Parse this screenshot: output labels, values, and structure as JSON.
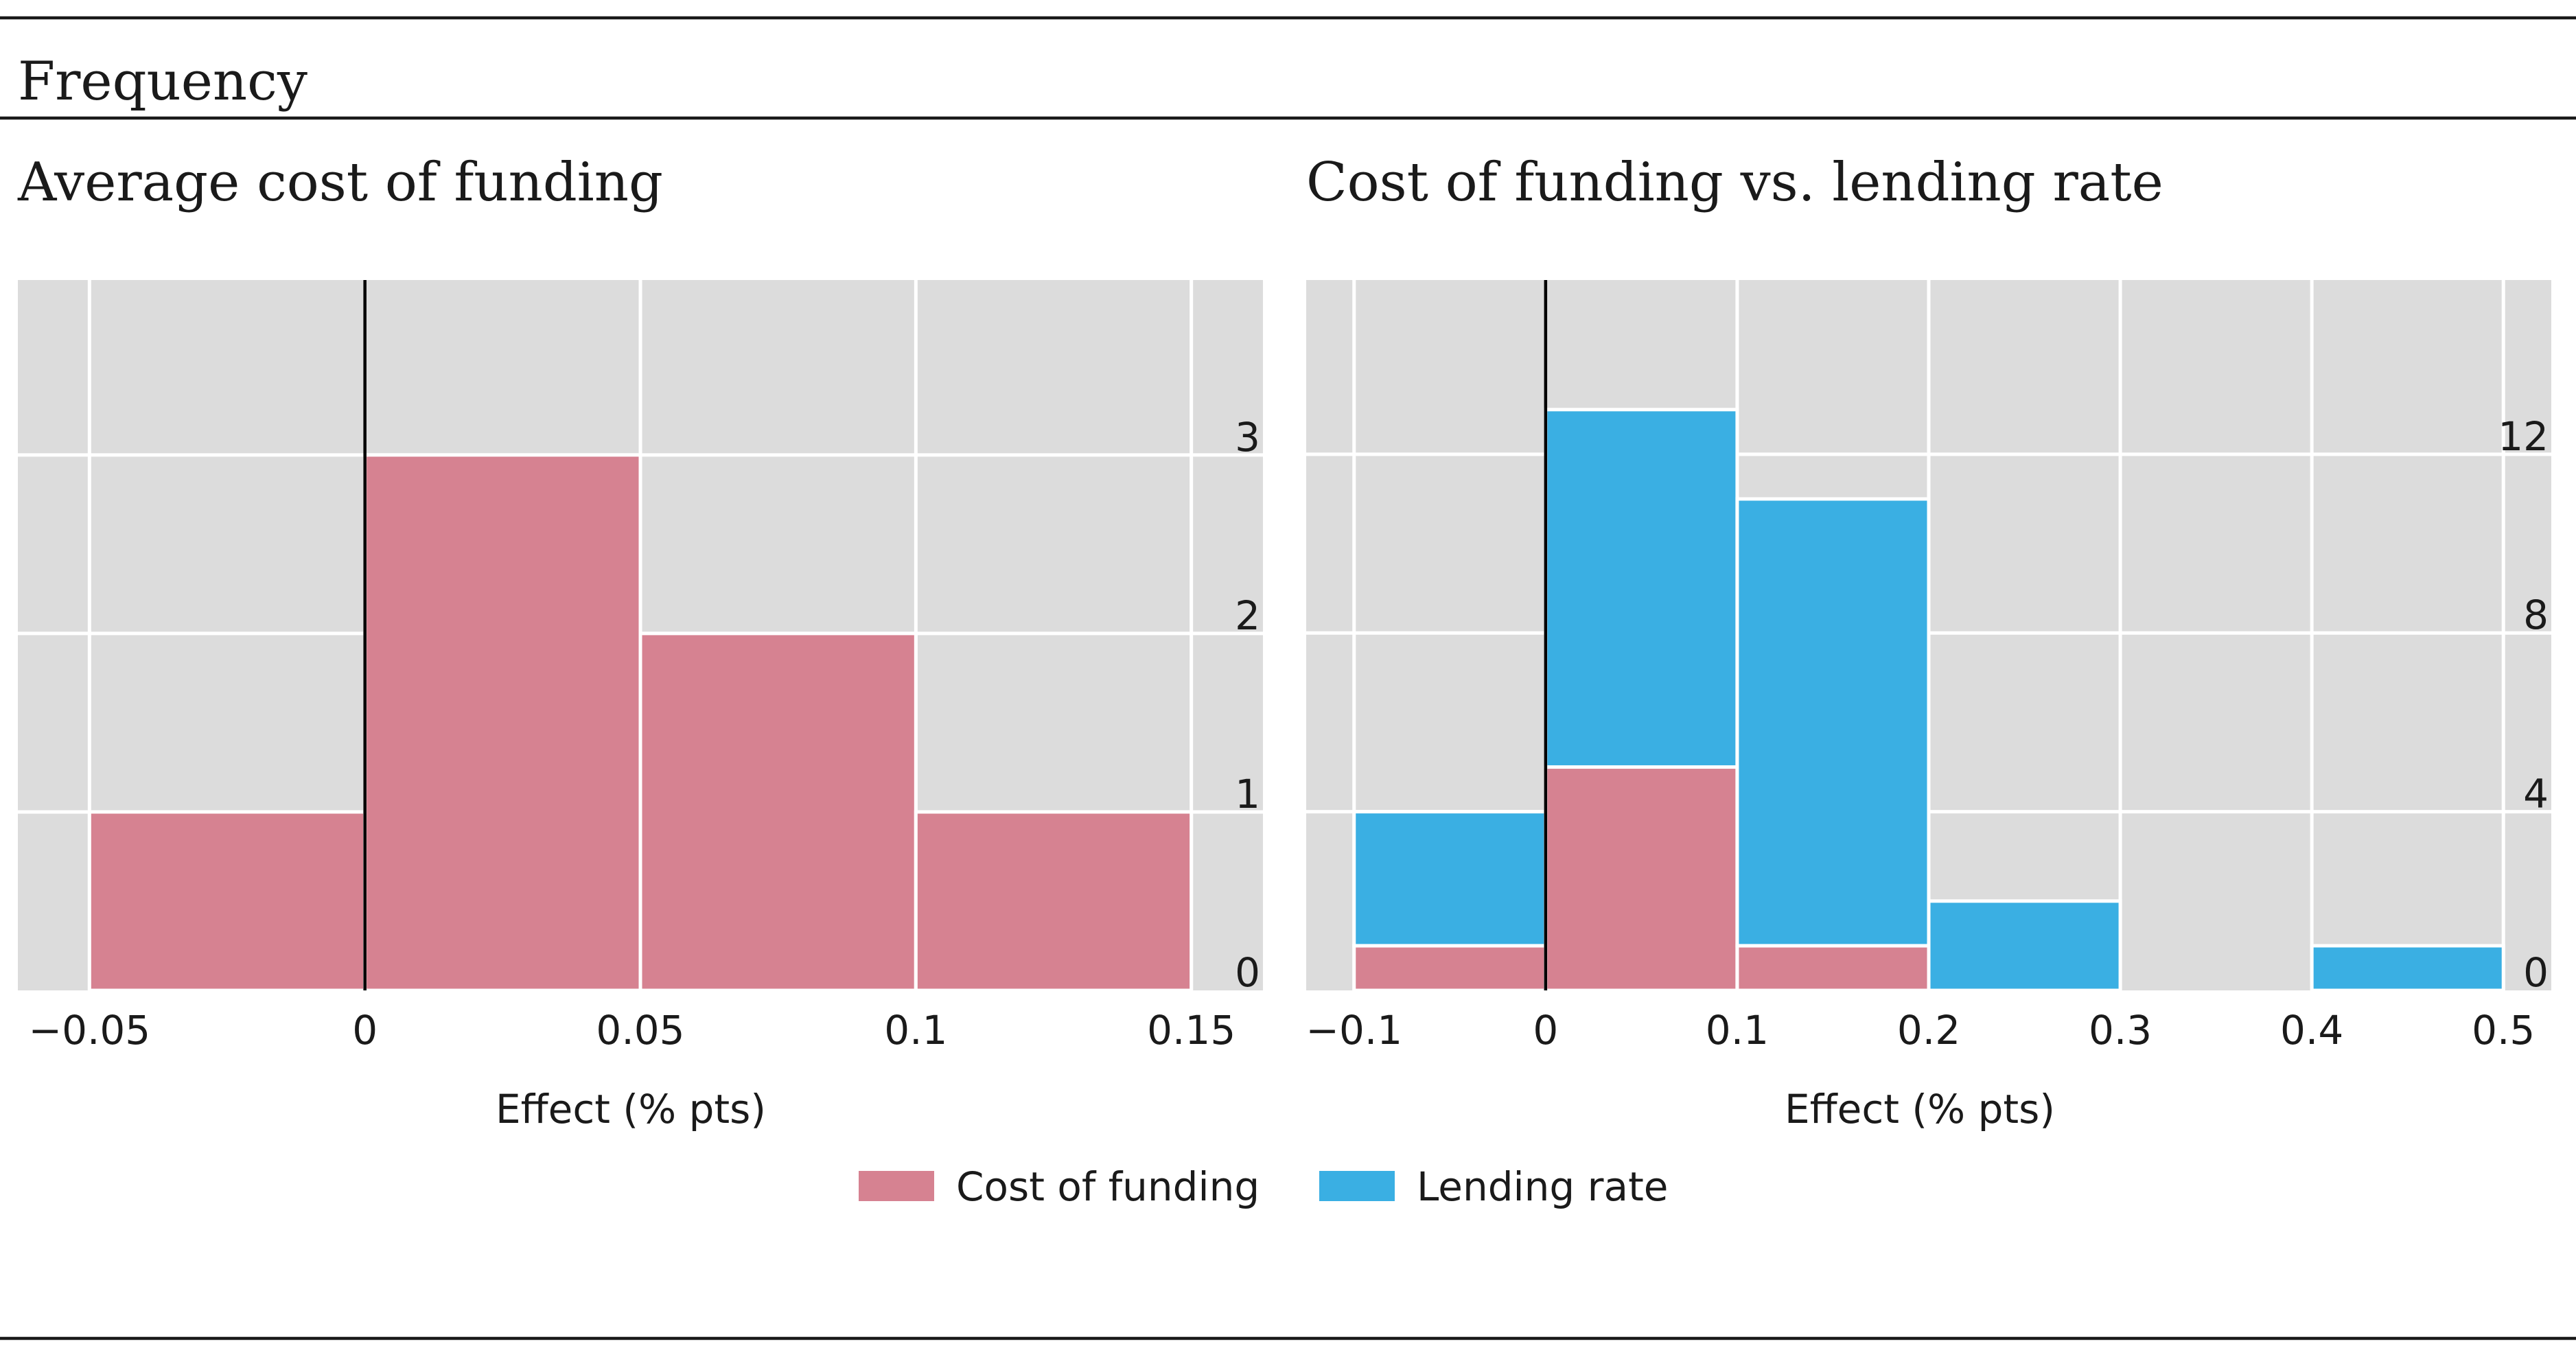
{
  "header": {
    "title": "Frequency"
  },
  "legend": [
    {
      "label": "Cost of funding",
      "color": "#d68291"
    },
    {
      "label": "Lending rate",
      "color": "#3aafe3"
    }
  ],
  "chart_data": [
    {
      "type": "bar",
      "title": "Average cost of funding",
      "xlabel": "Effect (% pts)",
      "ylabel": "Frequency",
      "xlim": [
        -0.063,
        0.163
      ],
      "ylim": [
        0,
        3.98
      ],
      "xticks": [
        -0.05,
        0,
        0.05,
        0.1,
        0.15
      ],
      "xtick_labels": [
        "−0.05",
        "0",
        "0.05",
        "0.1",
        "0.15"
      ],
      "yticks": [
        0,
        1,
        2,
        3
      ],
      "ytick_labels": [
        "0",
        "1",
        "2",
        "3"
      ],
      "bins": [
        [
          -0.05,
          0
        ],
        [
          0,
          0.05
        ],
        [
          0.05,
          0.1
        ],
        [
          0.1,
          0.15
        ]
      ],
      "series": [
        {
          "name": "Cost of funding",
          "color": "#d68291",
          "values": [
            1,
            3,
            2,
            1
          ]
        }
      ]
    },
    {
      "type": "bar",
      "stacked": true,
      "title": "Cost of funding vs. lending rate",
      "xlabel": "Effect (% pts)",
      "ylabel": "Frequency",
      "xlim": [
        -0.125,
        0.525
      ],
      "ylim": [
        0,
        15.9
      ],
      "xticks": [
        -0.1,
        0,
        0.1,
        0.2,
        0.3,
        0.4,
        0.5
      ],
      "xtick_labels": [
        "−0.1",
        "0",
        "0.1",
        "0.2",
        "0.3",
        "0.4",
        "0.5"
      ],
      "yticks": [
        0,
        4,
        8,
        12
      ],
      "ytick_labels": [
        "0",
        "4",
        "8",
        "12"
      ],
      "bins": [
        [
          -0.1,
          0
        ],
        [
          0,
          0.1
        ],
        [
          0.1,
          0.2
        ],
        [
          0.2,
          0.3
        ],
        [
          0.3,
          0.4
        ],
        [
          0.4,
          0.5
        ]
      ],
      "series": [
        {
          "name": "Cost of funding",
          "color": "#d68291",
          "values": [
            1,
            5,
            1,
            0,
            0,
            0
          ]
        },
        {
          "name": "Lending rate",
          "color": "#3aafe3",
          "values": [
            3,
            8,
            10,
            2,
            0,
            1
          ]
        }
      ]
    }
  ]
}
